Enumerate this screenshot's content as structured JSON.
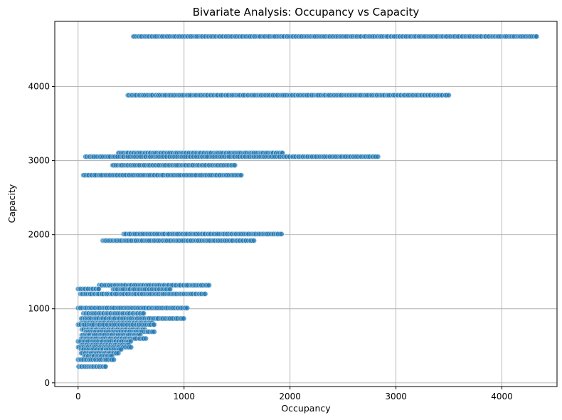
{
  "chart_data": {
    "type": "scatter",
    "title": "Bivariate Analysis: Occupancy vs Capacity",
    "xlabel": "Occupancy",
    "ylabel": "Capacity",
    "xlim": [
      -220,
      4520
    ],
    "ylim": [
      -50,
      4880
    ],
    "xticks": [
      0,
      1000,
      2000,
      3000,
      4000
    ],
    "yticks": [
      0,
      1000,
      2000,
      3000,
      4000
    ],
    "grid": true,
    "marker_color": "#1f77b4",
    "series": [
      {
        "bands": [
          {
            "capacity": 4675,
            "occupancy_min": 520,
            "occupancy_max": 4330
          },
          {
            "capacity": 3883,
            "occupancy_min": 470,
            "occupancy_max": 3500
          },
          {
            "capacity": 3103,
            "occupancy_min": 380,
            "occupancy_max": 1930
          },
          {
            "capacity": 3053,
            "occupancy_min": 70,
            "occupancy_max": 2830
          },
          {
            "capacity": 2937,
            "occupancy_min": 320,
            "occupancy_max": 1480
          },
          {
            "capacity": 2803,
            "occupancy_min": 50,
            "occupancy_max": 1540
          },
          {
            "capacity": 2009,
            "occupancy_min": 430,
            "occupancy_max": 1920
          },
          {
            "capacity": 1920,
            "occupancy_min": 230,
            "occupancy_max": 1660
          },
          {
            "capacity": 1318,
            "occupancy_min": 200,
            "occupancy_max": 1240
          },
          {
            "capacity": 1267,
            "occupancy_min": 0,
            "occupancy_max": 200
          },
          {
            "capacity": 1263,
            "occupancy_min": 330,
            "occupancy_max": 870
          },
          {
            "capacity": 1200,
            "occupancy_min": 20,
            "occupancy_max": 1200
          },
          {
            "capacity": 1010,
            "occupancy_min": 0,
            "occupancy_max": 1030
          },
          {
            "capacity": 937,
            "occupancy_min": 50,
            "occupancy_max": 620
          },
          {
            "capacity": 868,
            "occupancy_min": 30,
            "occupancy_max": 1000
          },
          {
            "capacity": 810,
            "occupancy_min": 30,
            "occupancy_max": 700
          },
          {
            "capacity": 786,
            "occupancy_min": 0,
            "occupancy_max": 720
          },
          {
            "capacity": 720,
            "occupancy_min": 30,
            "occupancy_max": 630
          },
          {
            "capacity": 690,
            "occupancy_min": 70,
            "occupancy_max": 720
          },
          {
            "capacity": 645,
            "occupancy_min": 30,
            "occupancy_max": 590
          },
          {
            "capacity": 598,
            "occupancy_min": 30,
            "occupancy_max": 640
          },
          {
            "capacity": 560,
            "occupancy_min": 0,
            "occupancy_max": 500
          },
          {
            "capacity": 510,
            "occupancy_min": 30,
            "occupancy_max": 480
          },
          {
            "capacity": 480,
            "occupancy_min": 0,
            "occupancy_max": 500
          },
          {
            "capacity": 450,
            "occupancy_min": 30,
            "occupancy_max": 410
          },
          {
            "capacity": 400,
            "occupancy_min": 30,
            "occupancy_max": 380
          },
          {
            "capacity": 360,
            "occupancy_min": 60,
            "occupancy_max": 320
          },
          {
            "capacity": 312,
            "occupancy_min": 0,
            "occupancy_max": 340
          },
          {
            "capacity": 220,
            "occupancy_min": 0,
            "occupancy_max": 260
          }
        ]
      }
    ]
  }
}
